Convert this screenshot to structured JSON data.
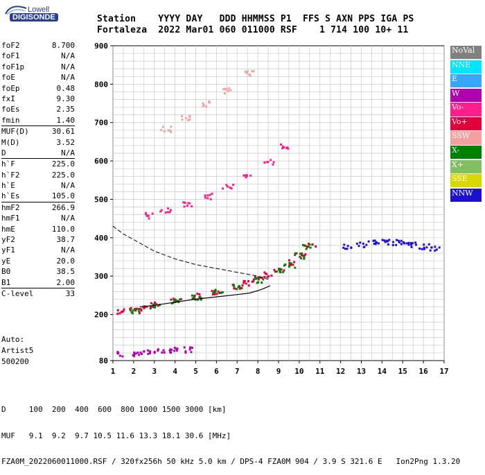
{
  "logo": {
    "line1": "Lowell",
    "line2": "DIGISONDE"
  },
  "header": {
    "row1": "Station    YYYY DAY   DDD HHMMSS P1  FFS S AXN PPS IGA PS",
    "row2": "Fortaleza  2022 Mar01 060 011000 RSF    1 714 100 10+ 11"
  },
  "params": [
    {
      "label": "foF2",
      "value": "8.700"
    },
    {
      "label": "foF1",
      "value": "N/A"
    },
    {
      "label": "foF1p",
      "value": "N/A"
    },
    {
      "label": "foE",
      "value": "N/A"
    },
    {
      "label": "foEp",
      "value": "0.48"
    },
    {
      "label": "fxI",
      "value": "9.30"
    },
    {
      "label": "foEs",
      "value": "2.35"
    },
    {
      "label": "fmin",
      "value": "1.40"
    },
    {
      "label": "MUF(D)",
      "value": "30.61",
      "sep": true
    },
    {
      "label": "M(D)",
      "value": "3.52"
    },
    {
      "label": "D",
      "value": "N/A"
    },
    {
      "label": "h`F",
      "value": "225.0",
      "sep": true
    },
    {
      "label": "h`F2",
      "value": "225.0"
    },
    {
      "label": "h`E",
      "value": "N/A"
    },
    {
      "label": "h`Es",
      "value": "105.0"
    },
    {
      "label": "hmF2",
      "value": "266.9",
      "sep": true
    },
    {
      "label": "hmF1",
      "value": "N/A"
    },
    {
      "label": "hmE",
      "value": "110.0"
    },
    {
      "label": "yF2",
      "value": "38.7"
    },
    {
      "label": "yF1",
      "value": "N/A"
    },
    {
      "label": "yE",
      "value": "20.0"
    },
    {
      "label": "B0",
      "value": "38.5"
    },
    {
      "label": "B1",
      "value": "2.00"
    },
    {
      "label": "C-level",
      "value": "33",
      "sep": true
    }
  ],
  "auto": {
    "line1": "Auto:",
    "line2": "Artist5",
    "line3": "500200"
  },
  "legend": [
    {
      "label": "NoVal",
      "color": "#808080"
    },
    {
      "label": "NNE",
      "color": "#00e5ff"
    },
    {
      "label": "E",
      "color": "#36a6ff"
    },
    {
      "label": "W",
      "color": "#b000b0"
    },
    {
      "label": "Vo-",
      "color": "#ff1e8c"
    },
    {
      "label": "Vo+",
      "color": "#e0003c"
    },
    {
      "label": "SSW",
      "color": "#f4a0a0"
    },
    {
      "label": "X-",
      "color": "#008000"
    },
    {
      "label": "X+",
      "color": "#80c060"
    },
    {
      "label": "SSE",
      "color": "#d8d800"
    },
    {
      "label": "NNW",
      "color": "#1c10d0"
    }
  ],
  "bottom": {
    "row1": "D     100  200  400  600  800 1000 1500 3000 [km]",
    "row2": "MUF   9.1  9.2  9.7 10.5 11.6 13.3 18.1 30.6 [MHz]",
    "row3": "FZA0M_2022060011000.RSF / 320fx256h 50 kHz 5.0 km / DPS-4 FZA0M 904 / 3.9 S 321.6 E   Ion2Png 1.3.20"
  },
  "chart_data": {
    "type": "scatter",
    "xlim": [
      1,
      17
    ],
    "ylim": [
      80,
      900
    ],
    "xticks": [
      1,
      2,
      3,
      4,
      5,
      6,
      7,
      8,
      9,
      10,
      11,
      12,
      13,
      14,
      15,
      16,
      17
    ],
    "yticks": [
      80,
      200,
      300,
      400,
      500,
      600,
      700,
      800,
      900
    ],
    "grid": true,
    "legend_position": "right",
    "traces": [
      {
        "name": "F2 O-trace",
        "color": "#e0003c",
        "x": [
          1.4,
          2.0,
          2.5,
          3.0,
          4.0,
          5.0,
          6.0,
          7.0,
          7.5,
          8.0,
          8.5,
          9.0,
          9.5,
          10.0,
          10.5
        ],
        "y": [
          210,
          213,
          220,
          228,
          240,
          250,
          262,
          275,
          283,
          293,
          306,
          320,
          338,
          360,
          380
        ]
      },
      {
        "name": "F2 X-trace",
        "color": "#008000",
        "x": [
          2.0,
          3.0,
          4.0,
          5.0,
          6.0,
          7.0,
          8.0,
          9.0,
          9.5,
          10.0,
          10.4
        ],
        "y": [
          212,
          222,
          235,
          248,
          262,
          275,
          292,
          315,
          330,
          355,
          380
        ]
      },
      {
        "name": "Es trace",
        "color": "#b000b0",
        "x": [
          1.4,
          2.0,
          2.5,
          3.0,
          3.5,
          4.0,
          4.6
        ],
        "y": [
          100,
          100,
          103,
          106,
          108,
          110,
          110
        ]
      },
      {
        "name": "2nd hop",
        "color": "#ff1e8c",
        "x": [
          2.8,
          3.5,
          4.5,
          5.5,
          6.5,
          7.5,
          8.5,
          9.3
        ],
        "y": [
          460,
          472,
          490,
          510,
          535,
          560,
          600,
          640
        ]
      },
      {
        "name": "3rd hop",
        "color": "#f4a0a0",
        "x": [
          3.5,
          4.5,
          5.5,
          6.5,
          7.5
        ],
        "y": [
          685,
          715,
          750,
          785,
          830
        ]
      },
      {
        "name": "spread F",
        "color": "#1c10d0",
        "x": [
          12.3,
          13.0,
          13.5,
          14.0,
          14.5,
          15.0,
          15.5,
          16.0,
          16.5
        ],
        "y": [
          380,
          385,
          390,
          392,
          390,
          388,
          385,
          380,
          375
        ]
      }
    ],
    "profile": {
      "solid_x": [
        2.3,
        3,
        4,
        5,
        6,
        7,
        7.6,
        8.0,
        8.3,
        8.6
      ],
      "solid_y": [
        220,
        224,
        232,
        240,
        246,
        252,
        256,
        262,
        268,
        275
      ],
      "dashed_x": [
        1.0,
        1.5,
        2.0,
        3.0,
        4.0,
        5.0,
        6.0,
        7.0,
        8.0,
        8.6
      ],
      "dashed_y": [
        430,
        410,
        395,
        365,
        345,
        330,
        320,
        310,
        300,
        290
      ]
    }
  }
}
